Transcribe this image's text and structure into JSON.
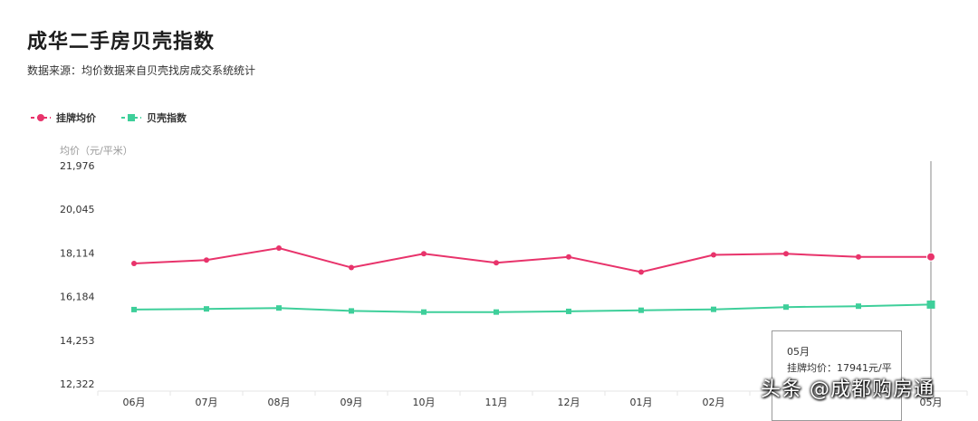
{
  "header": {
    "title": "成华二手房贝壳指数",
    "subtitle": "数据来源：均价数据来自贝壳找房成交系统统计"
  },
  "legend": [
    {
      "label": "挂牌均价",
      "color": "#e8336b"
    },
    {
      "label": "贝壳指数",
      "color": "#3ecf9a"
    }
  ],
  "y_axis_title": "均价（元/平米）",
  "tooltip": {
    "month": "05月",
    "line": "挂牌均价：17941元/平"
  },
  "watermark": "头条 @成都购房通",
  "chart_data": {
    "type": "line",
    "categories": [
      "06月",
      "07月",
      "08月",
      "09月",
      "10月",
      "11月",
      "12月",
      "01月",
      "02月",
      "03月",
      "04月",
      "05月"
    ],
    "y_ticks": [
      "21,976",
      "20,045",
      "18,114",
      "16,184",
      "14,253",
      "12,322"
    ],
    "ylim": [
      12322,
      21976
    ],
    "xlabel": "",
    "ylabel": "均价（元/平米）",
    "series": [
      {
        "name": "挂牌均价",
        "color": "#e8336b",
        "marker": "circle",
        "values": [
          17650,
          17800,
          18330,
          17470,
          18080,
          17680,
          17940,
          17270,
          18030,
          18080,
          17940,
          17941
        ]
      },
      {
        "name": "贝壳指数",
        "color": "#3ecf9a",
        "marker": "square",
        "values": [
          15610,
          15640,
          15680,
          15550,
          15500,
          15500,
          15530,
          15580,
          15620,
          15720,
          15760,
          15830
        ]
      }
    ]
  }
}
